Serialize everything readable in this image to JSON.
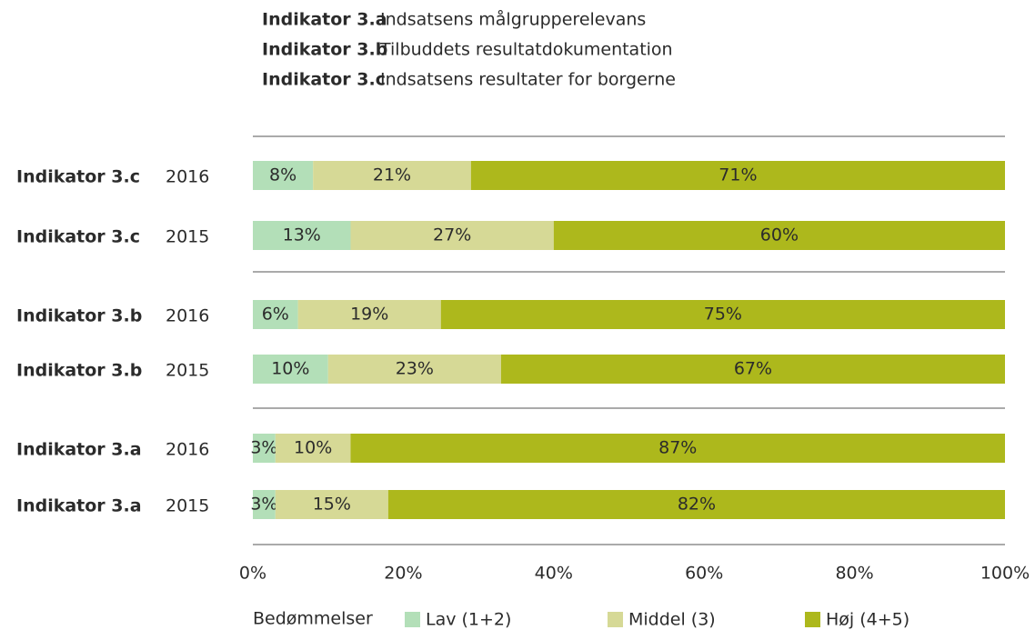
{
  "chart_data": {
    "type": "stacked-barh",
    "indicators": [
      {
        "key": "Indikator 3.a",
        "label": "Indsatsens målgrupperelevans"
      },
      {
        "key": "Indikator 3.b",
        "label": "Tilbuddets resultatdokumentation"
      },
      {
        "key": "Indikator 3.c",
        "label": "Indsatsens resultater for borgerne"
      }
    ],
    "categories": [
      "Indikator 3.c",
      "Indikator 3.c",
      "Indikator 3.b",
      "Indikator 3.b",
      "Indikator 3.a",
      "Indikator 3.a"
    ],
    "years": [
      "2016",
      "2015",
      "2016",
      "2015",
      "2016",
      "2015"
    ],
    "series": [
      {
        "name": "Lav (1+2)",
        "color": "#b3dfb8",
        "values": [
          8,
          13,
          6,
          10,
          3,
          3
        ],
        "value_labels": [
          "8%",
          "13%",
          "6%",
          "10%",
          "3%",
          "3%"
        ]
      },
      {
        "name": "Middel (3)",
        "color": "#d6d996",
        "values": [
          21,
          27,
          19,
          23,
          10,
          15
        ],
        "value_labels": [
          "21%",
          "27%",
          "19%",
          "23%",
          "10%",
          "15%"
        ]
      },
      {
        "name": "Høj (4+5)",
        "color": "#adb81c",
        "values": [
          71,
          60,
          75,
          67,
          87,
          82
        ],
        "value_labels": [
          "71%",
          "60%",
          "75%",
          "67%",
          "87%",
          "82%"
        ]
      }
    ],
    "legend_title": "Bedømmelser",
    "xlim": [
      0,
      100
    ],
    "xticks": [
      {
        "value": 0,
        "label": "0%"
      },
      {
        "value": 20,
        "label": "20%"
      },
      {
        "value": 40,
        "label": "40%"
      },
      {
        "value": 60,
        "label": "60%"
      },
      {
        "value": 80,
        "label": "80%"
      },
      {
        "value": 100,
        "label": "100%"
      }
    ]
  }
}
